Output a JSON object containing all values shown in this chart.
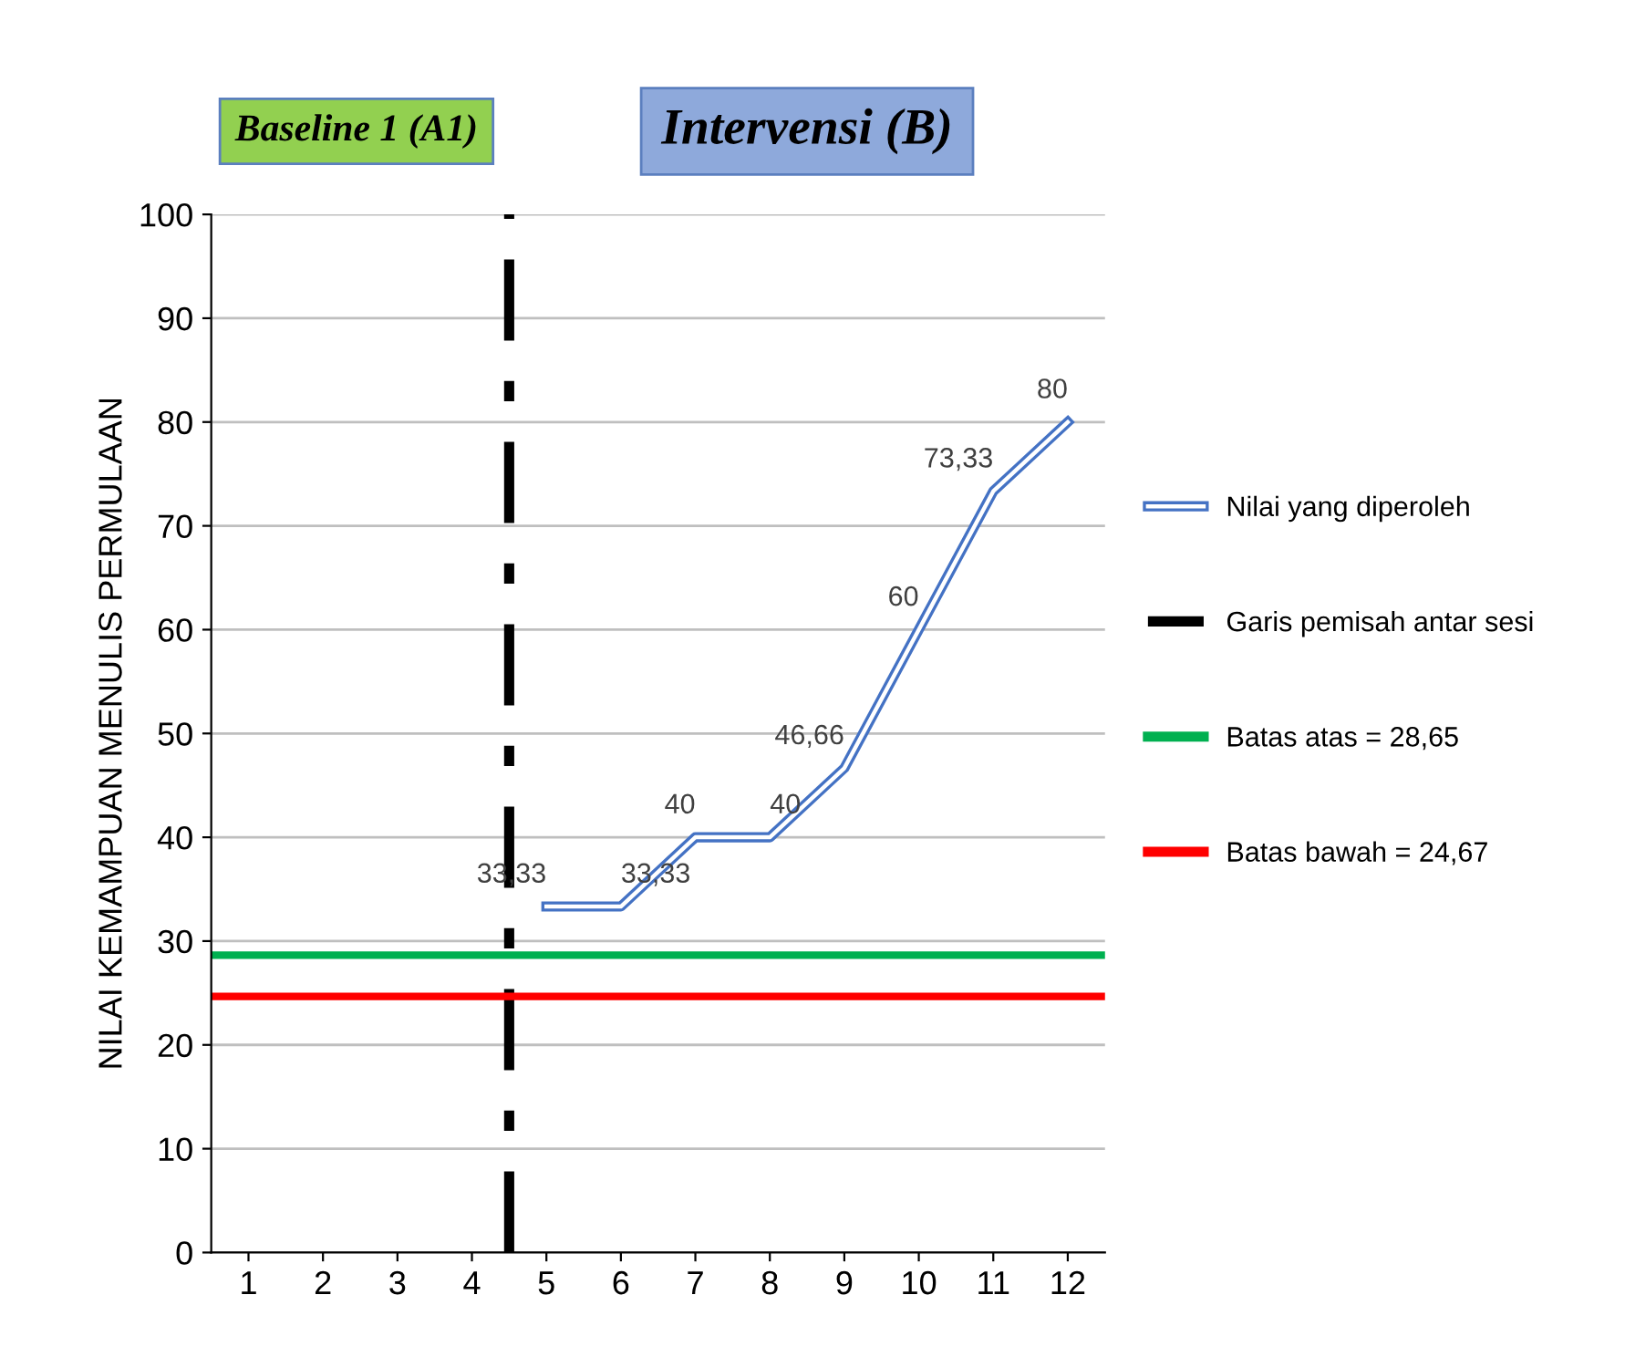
{
  "chart_data": {
    "type": "line",
    "ylabel": "NILAI KEMAMPUAN MENULIS PERMULAAN",
    "xlim": [
      0.5,
      12.5
    ],
    "xticks": [
      1,
      2,
      3,
      4,
      5,
      6,
      7,
      8,
      9,
      10,
      11,
      12
    ],
    "ylim": [
      0,
      100
    ],
    "yticks": [
      0,
      10,
      20,
      30,
      40,
      50,
      60,
      70,
      80,
      90,
      100
    ],
    "series": [
      {
        "name": "Nilai yang diperoleh",
        "color": "#4472c4",
        "x": [
          5,
          6,
          7,
          8,
          9,
          10,
          11,
          12
        ],
        "values": [
          33.33,
          33.33,
          40,
          40,
          46.66,
          60,
          73.33,
          80
        ],
        "value_labels": [
          "33,33",
          "33,33",
          "40",
          "40",
          "46,66",
          "60",
          "73,33",
          "80"
        ]
      }
    ],
    "ref_lines": [
      {
        "axis": "x",
        "value": 4.5,
        "label": "Garis pemisah antar sesi",
        "color": "#000000",
        "line_style": "dashdot"
      },
      {
        "axis": "y",
        "value": 28.65,
        "label": "Batas atas = 28,65",
        "color": "#00b050",
        "line_style": "solid"
      },
      {
        "axis": "y",
        "value": 24.67,
        "label": "Batas bawah = 24,67",
        "color": "#ff0000",
        "line_style": "solid"
      }
    ],
    "annotations": [
      "Baseline 1 (A1)",
      "Intervensi (B)"
    ],
    "grid": "y",
    "legend": "right",
    "marker": "none",
    "line_style": "solid"
  }
}
